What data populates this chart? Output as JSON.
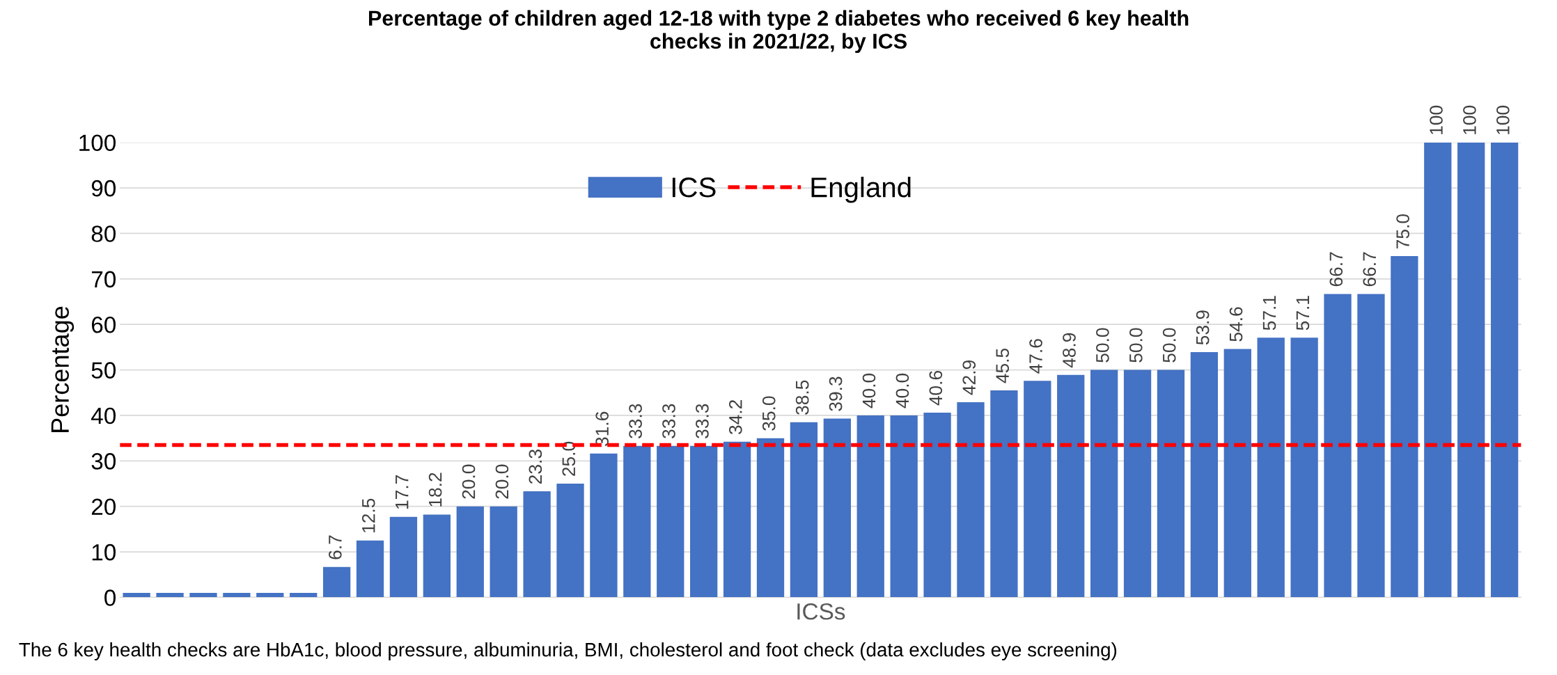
{
  "chart_data": {
    "type": "bar",
    "title": "Percentage of children aged 12-18 with type 2 diabetes who received 6 key health\nchecks in 2021/22, by ICS",
    "xlabel": "ICSs",
    "ylabel": "Percentage",
    "categories": [
      null,
      null,
      null,
      null,
      null,
      null,
      null,
      null,
      null,
      null,
      null,
      null,
      null,
      null,
      null,
      null,
      null,
      null,
      null,
      null,
      null,
      null,
      null,
      null,
      null,
      null,
      null,
      null,
      null,
      null,
      null,
      null,
      null,
      null,
      null,
      null,
      null,
      null,
      null,
      null,
      null,
      null
    ],
    "series": [
      {
        "name": "ICS",
        "color": "#4472c4",
        "values": [
          1,
          1,
          1,
          1,
          1,
          1,
          6.7,
          12.5,
          17.7,
          18.2,
          20.0,
          20.0,
          23.3,
          25.0,
          31.6,
          33.3,
          33.3,
          33.3,
          34.2,
          35.0,
          38.5,
          39.3,
          40.0,
          40.0,
          40.6,
          42.9,
          45.5,
          47.6,
          48.9,
          50.0,
          50.0,
          50.0,
          53.9,
          54.6,
          57.1,
          57.1,
          66.7,
          66.7,
          75.0,
          100,
          100,
          100
        ],
        "value_labels": [
          null,
          null,
          null,
          null,
          null,
          null,
          "6.7",
          "12.5",
          "17.7",
          "18.2",
          "20.0",
          "20.0",
          "23.3",
          "25.0",
          "31.6",
          "33.3",
          "33.3",
          "33.3",
          "34.2",
          "35.0",
          "38.5",
          "39.3",
          "40.0",
          "40.0",
          "40.6",
          "42.9",
          "45.5",
          "47.6",
          "48.9",
          "50.0",
          "50.0",
          "50.0",
          "53.9",
          "54.6",
          "57.1",
          "57.1",
          "66.7",
          "66.7",
          "75.0",
          "100",
          "100",
          "100"
        ]
      }
    ],
    "ref_lines": [
      {
        "axis": "y",
        "value": 33.5,
        "label": "England",
        "color": "#ff0000",
        "line_style": "dashed"
      }
    ],
    "ylim": [
      0,
      100
    ],
    "yticks": [
      0,
      10,
      20,
      30,
      40,
      50,
      60,
      70,
      80,
      90,
      100
    ],
    "grid": "y",
    "legend": "top",
    "annotations": [
      "The 6 key health checks are HbA1c, blood pressure, albuminuria, BMI, cholesterol and foot check (data excludes eye screening)"
    ]
  }
}
